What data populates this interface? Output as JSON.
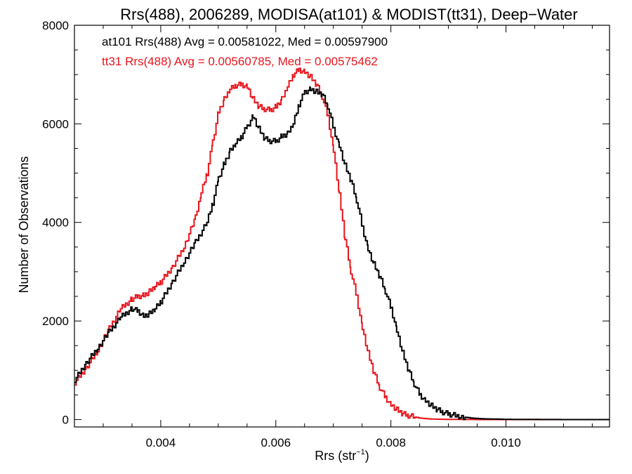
{
  "chart_data": {
    "type": "line",
    "title": "Rrs(488), 2006289, MODISA(at101) & MODIST(tt31), Deep−Water",
    "xlabel": "Rrs (str",
    "xlabel_sup": "−1",
    "xlabel_close": ")",
    "ylabel": "Number of Observations",
    "xlim": [
      0.0025,
      0.0118
    ],
    "ylim": [
      -150,
      8000
    ],
    "xticks": [
      0.004,
      0.006,
      0.008,
      0.01
    ],
    "xtick_labels": [
      "0.004",
      "0.006",
      "0.008",
      "0.010"
    ],
    "yticks": [
      0,
      2000,
      4000,
      6000,
      8000
    ],
    "ytick_labels": [
      "0",
      "2000",
      "4000",
      "6000",
      "8000"
    ],
    "grid": false,
    "annotations": [
      {
        "text": "at101 Rrs(488) Avg = 0.00581022, Med = 0.00597900",
        "color": "#000000"
      },
      {
        "text": "tt31 Rrs(488) Avg = 0.00560785, Med = 0.00575462",
        "color": "#e8141c"
      }
    ],
    "series": [
      {
        "color": "#000000",
        "x": [
          0.0025,
          0.0027,
          0.0029,
          0.0031,
          0.0033,
          0.0035,
          0.0036,
          0.0037,
          0.0038,
          0.0039,
          0.004,
          0.0042,
          0.0044,
          0.0046,
          0.0048,
          0.0049,
          0.005,
          0.0051,
          0.0052,
          0.0053,
          0.0054,
          0.0055,
          0.0056,
          0.0057,
          0.0058,
          0.0059,
          0.006,
          0.0061,
          0.0062,
          0.0063,
          0.0064,
          0.0065,
          0.0066,
          0.0067,
          0.0068,
          0.0069,
          0.007,
          0.0071,
          0.0072,
          0.0073,
          0.0074,
          0.0075,
          0.0076,
          0.0077,
          0.0078,
          0.0079,
          0.008,
          0.0081,
          0.0082,
          0.0083,
          0.0084,
          0.0085,
          0.0086,
          0.0087,
          0.0088,
          0.0089,
          0.009,
          0.0092,
          0.0094,
          0.0096,
          0.01,
          0.0105,
          0.011,
          0.0118
        ],
        "y": [
          800,
          1150,
          1450,
          1780,
          2080,
          2250,
          2200,
          2100,
          2150,
          2250,
          2400,
          2800,
          3200,
          3600,
          4000,
          4400,
          4900,
          5200,
          5450,
          5600,
          5750,
          5950,
          6150,
          5900,
          5700,
          5650,
          5650,
          5750,
          5800,
          6000,
          6400,
          6650,
          6700,
          6650,
          6600,
          6350,
          5900,
          5550,
          5150,
          4850,
          4450,
          3900,
          3450,
          3150,
          2900,
          2600,
          2250,
          1800,
          1350,
          1000,
          720,
          500,
          380,
          280,
          200,
          150,
          110,
          60,
          30,
          15,
          5,
          2,
          0,
          0
        ]
      },
      {
        "color": "#e8141c",
        "x": [
          0.0025,
          0.0027,
          0.0029,
          0.0031,
          0.0033,
          0.0035,
          0.0036,
          0.0037,
          0.0038,
          0.0039,
          0.004,
          0.0042,
          0.0044,
          0.0046,
          0.0047,
          0.0048,
          0.0049,
          0.005,
          0.0051,
          0.0052,
          0.0053,
          0.0054,
          0.0055,
          0.0056,
          0.0057,
          0.0058,
          0.0059,
          0.006,
          0.0061,
          0.0062,
          0.0063,
          0.0064,
          0.0065,
          0.0066,
          0.0067,
          0.0068,
          0.0069,
          0.007,
          0.0071,
          0.0072,
          0.0073,
          0.0074,
          0.0075,
          0.0076,
          0.0077,
          0.0078,
          0.0079,
          0.008,
          0.0081,
          0.0082,
          0.0083,
          0.0085,
          0.0087,
          0.0089,
          0.0092,
          0.0095,
          0.01,
          0.011,
          0.0118
        ],
        "y": [
          750,
          1050,
          1400,
          1850,
          2250,
          2450,
          2500,
          2520,
          2600,
          2700,
          2800,
          3100,
          3500,
          4100,
          4600,
          5000,
          5650,
          6250,
          6500,
          6700,
          6780,
          6800,
          6750,
          6500,
          6350,
          6300,
          6280,
          6350,
          6500,
          6750,
          7000,
          7100,
          7050,
          6950,
          6800,
          6550,
          6150,
          5450,
          4550,
          3650,
          3000,
          2500,
          1850,
          1350,
          950,
          650,
          450,
          300,
          200,
          120,
          80,
          30,
          10,
          5,
          2,
          0,
          0,
          0,
          0
        ]
      }
    ]
  }
}
